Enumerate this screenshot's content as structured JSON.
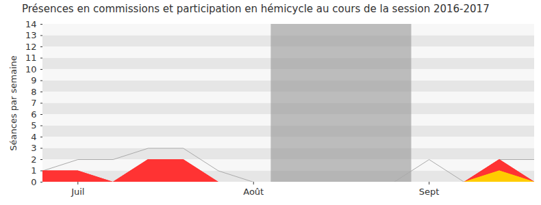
{
  "chart_data": {
    "type": "area",
    "title": "Présences en commissions et participation en hémicycle au cours de la session 2016-2017",
    "y_label": "Séances par semaine",
    "categories": [
      null,
      "Juil",
      null,
      null,
      null,
      null,
      "Août",
      null,
      null,
      null,
      null,
      "Sept",
      null,
      null,
      null
    ],
    "series": [
      {
        "type": "line",
        "color": "#aaaaaa",
        "values": [
          1,
          2,
          2,
          3,
          3,
          1,
          0,
          0,
          0,
          0,
          0,
          2,
          0,
          2,
          2
        ]
      },
      {
        "type": "area",
        "color": "#ff3333",
        "values": [
          1,
          1,
          0,
          2,
          2,
          0,
          0,
          0,
          0,
          0,
          0,
          0,
          0,
          2,
          0
        ]
      },
      {
        "type": "area",
        "color": "#ffcc00",
        "values": [
          0,
          0,
          0,
          0,
          0,
          0,
          0,
          0,
          0,
          0,
          0,
          0,
          0,
          1,
          0
        ]
      }
    ],
    "recess": {
      "start": 7,
      "end": 10
    },
    "ylim": [
      0,
      14
    ],
    "yticks": [
      0,
      1,
      2,
      3,
      4,
      5,
      6,
      7,
      8,
      9,
      10,
      11,
      12,
      13,
      14
    ],
    "grid": true
  }
}
